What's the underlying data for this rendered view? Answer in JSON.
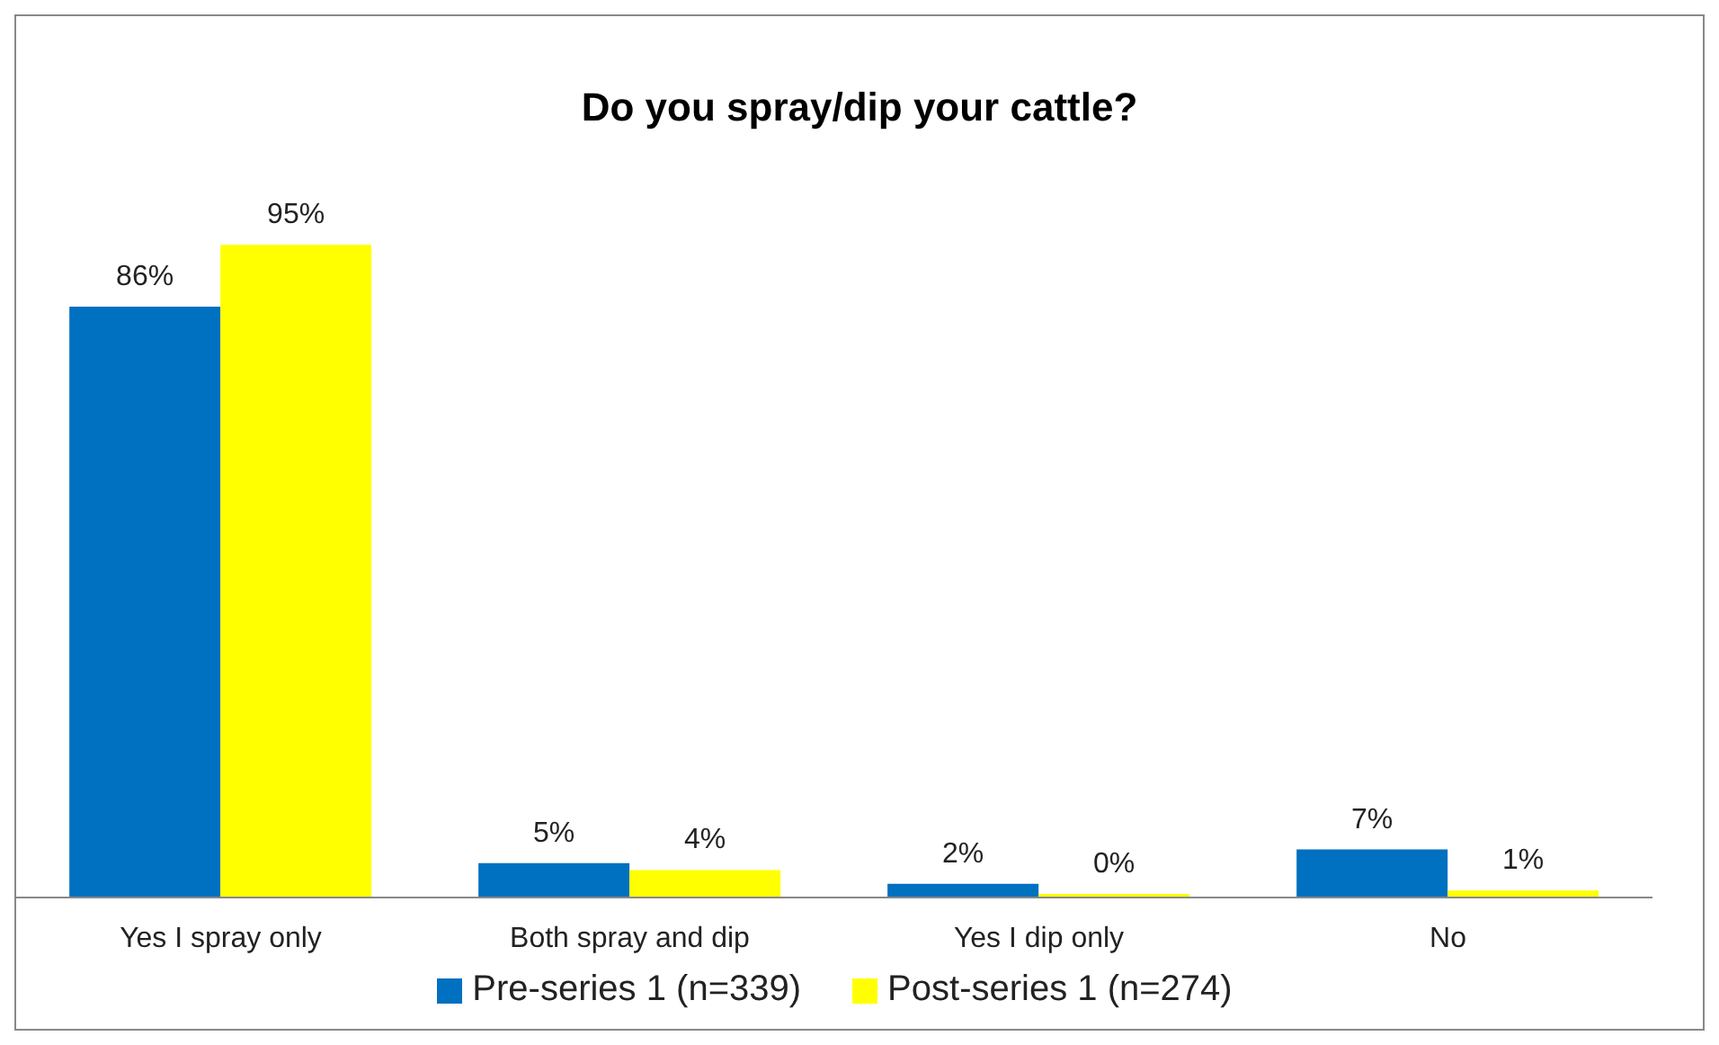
{
  "chart_data": {
    "type": "bar",
    "title": "Do you spray/dip your cattle?",
    "categories": [
      "Yes I spray only",
      "Both spray and dip",
      "Yes I dip only",
      "No"
    ],
    "series": [
      {
        "name": "Pre-series 1 (n=339)",
        "color": "#0070c0",
        "values": [
          86,
          5,
          2,
          7
        ],
        "value_labels": [
          "86%",
          "5%",
          "2%",
          "7%"
        ]
      },
      {
        "name": "Post-series 1 (n=274)",
        "color": "#ffff00",
        "values": [
          95,
          4,
          0,
          1
        ],
        "value_labels": [
          "95%",
          "4%",
          "0%",
          "1%"
        ]
      }
    ],
    "grid": false,
    "legend": "bottom",
    "tick_labels": "x"
  }
}
